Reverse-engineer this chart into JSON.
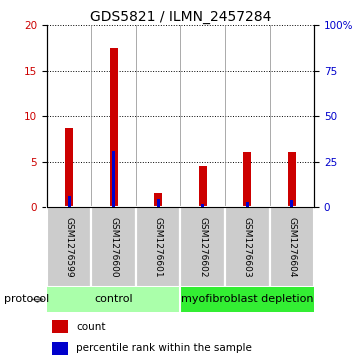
{
  "title": "GDS5821 / ILMN_2457284",
  "samples": [
    "GSM1276599",
    "GSM1276600",
    "GSM1276601",
    "GSM1276602",
    "GSM1276603",
    "GSM1276604"
  ],
  "count_values": [
    8.7,
    17.5,
    1.5,
    4.5,
    6.0,
    6.0
  ],
  "percentile_values": [
    6.0,
    31.0,
    4.5,
    1.5,
    2.5,
    4.0
  ],
  "ylim_left": [
    0,
    20
  ],
  "ylim_right": [
    0,
    100
  ],
  "yticks_left": [
    0,
    5,
    10,
    15,
    20
  ],
  "yticks_right": [
    0,
    25,
    50,
    75,
    100
  ],
  "ytick_labels_right": [
    "0",
    "25",
    "50",
    "75",
    "100%"
  ],
  "bar_color_red": "#cc0000",
  "bar_color_blue": "#0000cc",
  "group_labels": [
    "control",
    "myofibroblast depletion"
  ],
  "group_bg_light": "#aaffaa",
  "group_bg_dark": "#33ee33",
  "sample_bg_color": "#cccccc",
  "legend_red_label": "count",
  "legend_blue_label": "percentile rank within the sample",
  "protocol_label": "protocol",
  "title_fontsize": 10,
  "tick_fontsize": 7.5,
  "sample_fontsize": 6.5,
  "group_fontsize": 8,
  "legend_fontsize": 7.5,
  "red_bar_width": 0.18,
  "blue_bar_width": 0.06
}
